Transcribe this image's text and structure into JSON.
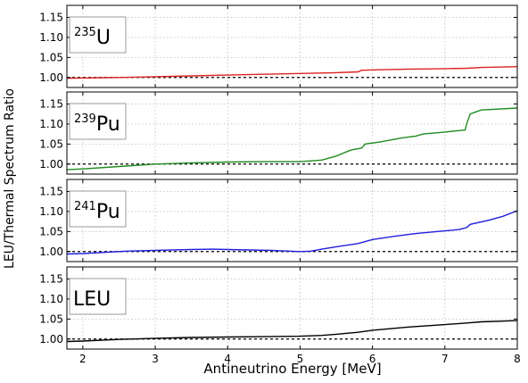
{
  "figure": {
    "ylabel": "LEU/Thermal Spectrum Ratio",
    "xlabel": "Antineutrino Energy [MeV]",
    "x_ticks": [
      "2",
      "3",
      "4",
      "5",
      "6",
      "7",
      "8"
    ],
    "y_ticks": [
      "1.00",
      "1.05",
      "1.10",
      "1.15"
    ]
  },
  "chart_data": [
    {
      "type": "line",
      "panel_label": {
        "sup": "235",
        "main": "U"
      },
      "xlim": [
        1.78,
        8.0
      ],
      "ylim": [
        0.975,
        1.18
      ],
      "grid": true,
      "reference_line": 1.0,
      "color": "#dd2222",
      "x": [
        1.78,
        2.5,
        3.0,
        3.5,
        4.0,
        4.5,
        5.0,
        5.5,
        5.8,
        5.85,
        6.0,
        6.5,
        7.0,
        7.3,
        7.5,
        8.0
      ],
      "y": [
        0.998,
        1.0,
        1.002,
        1.004,
        1.006,
        1.008,
        1.01,
        1.012,
        1.014,
        1.018,
        1.019,
        1.021,
        1.022,
        1.023,
        1.025,
        1.027
      ]
    },
    {
      "type": "line",
      "panel_label": {
        "sup": "239",
        "main": "Pu"
      },
      "xlim": [
        1.78,
        8.0
      ],
      "ylim": [
        0.975,
        1.18
      ],
      "grid": true,
      "reference_line": 1.0,
      "color": "#1e8c1e",
      "x": [
        1.78,
        2.0,
        2.5,
        3.0,
        3.5,
        4.0,
        4.5,
        5.0,
        5.3,
        5.5,
        5.7,
        5.85,
        5.9,
        6.1,
        6.4,
        6.6,
        6.7,
        7.0,
        7.28,
        7.3,
        7.35,
        7.5,
        8.0
      ],
      "y": [
        0.986,
        0.988,
        0.994,
        1.0,
        1.003,
        1.005,
        1.006,
        1.006,
        1.01,
        1.02,
        1.035,
        1.04,
        1.05,
        1.055,
        1.065,
        1.07,
        1.075,
        1.08,
        1.085,
        1.1,
        1.125,
        1.135,
        1.14
      ]
    },
    {
      "type": "line",
      "panel_label": {
        "sup": "241",
        "main": "Pu"
      },
      "xlim": [
        1.78,
        8.0
      ],
      "ylim": [
        0.975,
        1.18
      ],
      "grid": true,
      "reference_line": 1.0,
      "color": "#1f1fdd",
      "x": [
        1.78,
        2.0,
        2.3,
        2.6,
        3.0,
        3.5,
        3.8,
        4.0,
        4.3,
        4.6,
        4.85,
        5.0,
        5.15,
        5.3,
        5.5,
        5.8,
        6.0,
        6.3,
        6.6,
        6.9,
        7.2,
        7.3,
        7.35,
        7.6,
        7.8,
        8.0
      ],
      "y": [
        0.994,
        0.995,
        0.998,
        1.001,
        1.003,
        1.005,
        1.006,
        1.005,
        1.004,
        1.003,
        1.001,
        1.0,
        1.001,
        1.006,
        1.012,
        1.02,
        1.03,
        1.038,
        1.045,
        1.05,
        1.055,
        1.06,
        1.068,
        1.078,
        1.088,
        1.102
      ]
    },
    {
      "type": "line",
      "panel_label": {
        "sup": "",
        "main": "LEU"
      },
      "xlim": [
        1.78,
        8.0
      ],
      "ylim": [
        0.975,
        1.18
      ],
      "grid": true,
      "reference_line": 1.0,
      "color": "#000000",
      "x": [
        1.78,
        2.0,
        2.5,
        3.0,
        3.5,
        4.0,
        4.5,
        5.0,
        5.3,
        5.5,
        5.8,
        6.0,
        6.5,
        7.0,
        7.3,
        7.5,
        8.0
      ],
      "y": [
        0.994,
        0.995,
        0.999,
        1.002,
        1.004,
        1.005,
        1.006,
        1.007,
        1.009,
        1.012,
        1.017,
        1.022,
        1.03,
        1.036,
        1.04,
        1.043,
        1.046
      ]
    }
  ]
}
